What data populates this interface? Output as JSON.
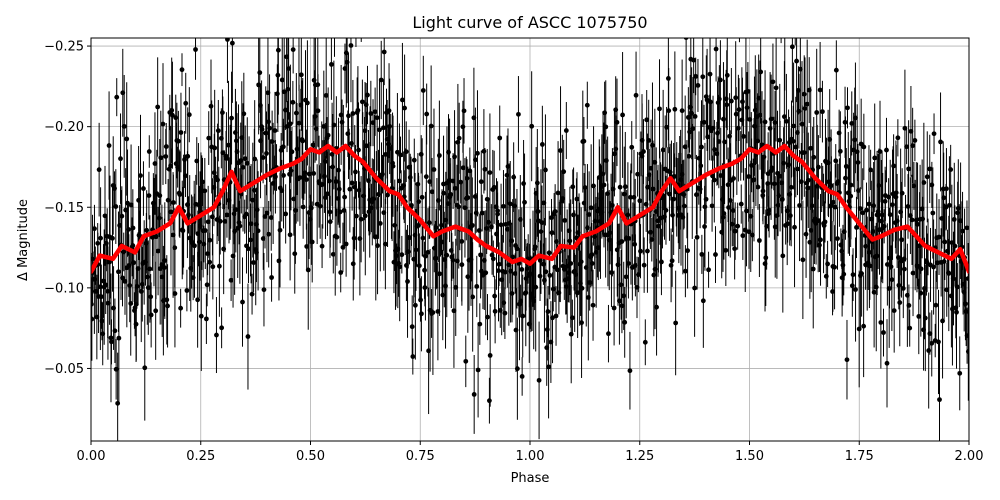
{
  "chart_data": {
    "type": "scatter",
    "title": "Light curve of ASCC 1075750",
    "xlabel": "Phase",
    "ylabel": "Δ Magnitude",
    "xlim": [
      0.0,
      2.0
    ],
    "ylim": [
      -0.005,
      -0.255
    ],
    "y_inverted": true,
    "grid": true,
    "x_ticks": [
      "0.00",
      "0.25",
      "0.50",
      "0.75",
      "1.00",
      "1.25",
      "1.50",
      "1.75",
      "2.00"
    ],
    "y_ticks": [
      "−0.25",
      "−0.20",
      "−0.15",
      "−0.10",
      "−0.05"
    ],
    "colors": {
      "points": "#000000",
      "model": "#ff0000",
      "grid": "#b0b0b0"
    },
    "series": [
      {
        "kind": "scatter-with-errorbars",
        "description_hidden": true,
        "point_count": 1300,
        "mean_profile_source": "model",
        "scatter_sigma": 0.065,
        "error_bar_halfwidth": [
          0.01,
          0.04
        ]
      },
      {
        "kind": "line",
        "x": [
          0.0,
          0.02,
          0.05,
          0.07,
          0.1,
          0.12,
          0.15,
          0.18,
          0.2,
          0.22,
          0.25,
          0.28,
          0.3,
          0.32,
          0.34,
          0.37,
          0.4,
          0.43,
          0.46,
          0.48,
          0.5,
          0.52,
          0.54,
          0.56,
          0.58,
          0.6,
          0.62,
          0.65,
          0.68,
          0.7,
          0.72,
          0.75,
          0.78,
          0.8,
          0.83,
          0.86,
          0.88,
          0.9,
          0.93,
          0.96,
          0.98,
          1.0,
          1.02,
          1.05,
          1.07,
          1.1,
          1.12,
          1.15,
          1.18,
          1.2,
          1.22,
          1.25,
          1.28,
          1.3,
          1.32,
          1.34,
          1.37,
          1.4,
          1.43,
          1.46,
          1.48,
          1.5,
          1.52,
          1.54,
          1.56,
          1.58,
          1.6,
          1.62,
          1.65,
          1.68,
          1.7,
          1.72,
          1.75,
          1.78,
          1.8,
          1.83,
          1.86,
          1.88,
          1.9,
          1.93,
          1.96,
          1.98,
          2.0
        ],
        "y": [
          -0.11,
          -0.12,
          -0.118,
          -0.126,
          -0.122,
          -0.132,
          -0.135,
          -0.14,
          -0.15,
          -0.14,
          -0.145,
          -0.15,
          -0.16,
          -0.172,
          -0.16,
          -0.165,
          -0.17,
          -0.174,
          -0.177,
          -0.18,
          -0.186,
          -0.184,
          -0.188,
          -0.184,
          -0.188,
          -0.182,
          -0.178,
          -0.168,
          -0.16,
          -0.158,
          -0.15,
          -0.142,
          -0.132,
          -0.135,
          -0.138,
          -0.135,
          -0.13,
          -0.126,
          -0.122,
          -0.116,
          -0.118,
          -0.115,
          -0.12,
          -0.118,
          -0.126,
          -0.125,
          -0.132,
          -0.135,
          -0.14,
          -0.15,
          -0.14,
          -0.145,
          -0.15,
          -0.16,
          -0.168,
          -0.16,
          -0.165,
          -0.17,
          -0.174,
          -0.177,
          -0.18,
          -0.186,
          -0.184,
          -0.188,
          -0.184,
          -0.188,
          -0.182,
          -0.178,
          -0.168,
          -0.16,
          -0.158,
          -0.15,
          -0.14,
          -0.13,
          -0.132,
          -0.136,
          -0.138,
          -0.132,
          -0.126,
          -0.122,
          -0.118,
          -0.124,
          -0.11
        ]
      }
    ]
  }
}
